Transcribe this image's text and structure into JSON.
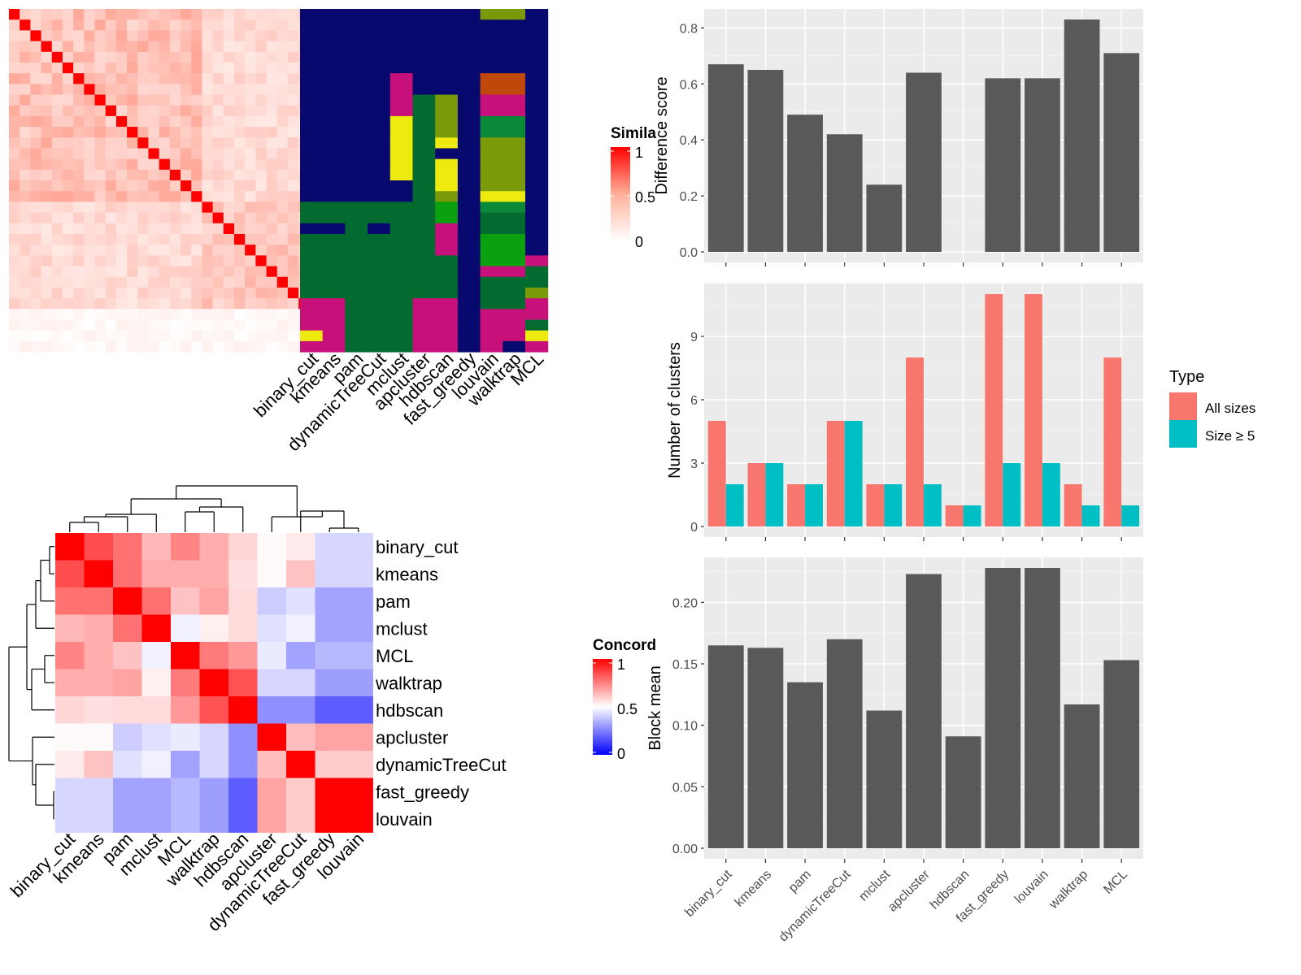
{
  "colors": {
    "panel_bg": "#ebebeb",
    "grid_major": "#ffffff",
    "bar_fill": "#595959",
    "all_sizes": "#F8766D",
    "size_ge5": "#00BFC4",
    "assign_navy": "#08096e",
    "assign_green": "#036b30",
    "assign_magenta": "#c8107a",
    "assign_yellow": "#eeea10",
    "assign_olive": "#7a9a0a",
    "assign_orange": "#c0480a",
    "assign_bright_green": "#0aa010",
    "assign_mid_green": "#0a8a38",
    "high": "#ff0000",
    "mid": "#ffffff",
    "low": "#0000ff"
  },
  "similarity_panel": {
    "legend_title": "Simila",
    "legend_ticks": [
      "1",
      "0.5",
      "0"
    ],
    "x_labels": [
      "binary_cut",
      "kmeans",
      "pam",
      "dynamicTreeCut",
      "mclust",
      "apcluster",
      "hdbscan",
      "fast_greedy",
      "louvain",
      "walktrap",
      "MCL"
    ],
    "n_terms": 32
  },
  "concordance_panel": {
    "legend_title": "Concord",
    "legend_ticks": [
      "1",
      "0.5",
      "0"
    ],
    "row_labels": [
      "binary_cut",
      "kmeans",
      "pam",
      "mclust",
      "MCL",
      "walktrap",
      "hdbscan",
      "apcluster",
      "dynamicTreeCut",
      "fast_greedy",
      "louvain"
    ],
    "col_labels": [
      "binary_cut",
      "kmeans",
      "pam",
      "mclust",
      "MCL",
      "walktrap",
      "hdbscan",
      "apcluster",
      "dynamicTreeCut",
      "fast_greedy",
      "louvain"
    ],
    "matrix": [
      [
        1.0,
        0.85,
        0.78,
        0.64,
        0.74,
        0.66,
        0.58,
        0.51,
        0.54,
        0.42,
        0.42
      ],
      [
        0.85,
        1.0,
        0.78,
        0.66,
        0.66,
        0.66,
        0.56,
        0.51,
        0.62,
        0.42,
        0.42
      ],
      [
        0.78,
        0.78,
        1.0,
        0.78,
        0.62,
        0.68,
        0.57,
        0.4,
        0.44,
        0.32,
        0.32
      ],
      [
        0.64,
        0.66,
        0.78,
        1.0,
        0.47,
        0.53,
        0.57,
        0.44,
        0.47,
        0.32,
        0.32
      ],
      [
        0.74,
        0.66,
        0.62,
        0.47,
        1.0,
        0.76,
        0.7,
        0.46,
        0.32,
        0.36,
        0.36
      ],
      [
        0.66,
        0.66,
        0.68,
        0.53,
        0.76,
        1.0,
        0.84,
        0.42,
        0.42,
        0.31,
        0.31
      ],
      [
        0.58,
        0.56,
        0.57,
        0.57,
        0.7,
        0.84,
        1.0,
        0.28,
        0.28,
        0.18,
        0.18
      ],
      [
        0.51,
        0.51,
        0.4,
        0.44,
        0.46,
        0.42,
        0.28,
        1.0,
        0.63,
        0.68,
        0.68
      ],
      [
        0.54,
        0.62,
        0.44,
        0.47,
        0.32,
        0.42,
        0.28,
        0.63,
        1.0,
        0.6,
        0.6
      ],
      [
        0.42,
        0.42,
        0.32,
        0.32,
        0.36,
        0.31,
        0.18,
        0.68,
        0.6,
        1.0,
        1.0
      ],
      [
        0.42,
        0.42,
        0.32,
        0.32,
        0.36,
        0.31,
        0.18,
        0.68,
        0.6,
        1.0,
        1.0
      ]
    ]
  },
  "chart_data": [
    {
      "type": "bar",
      "ylabel": "Difference score",
      "categories": [
        "binary_cut",
        "kmeans",
        "pam",
        "dynamicTreeCut",
        "mclust",
        "apcluster",
        "hdbscan",
        "fast_greedy",
        "louvain",
        "walktrap",
        "MCL"
      ],
      "values": [
        0.67,
        0.65,
        0.49,
        0.42,
        0.24,
        0.64,
        0.0,
        0.62,
        0.62,
        0.83,
        0.71
      ],
      "ylim": [
        0,
        0.84
      ],
      "yticks": [
        "0.0",
        "0.2",
        "0.4",
        "0.6",
        "0.8"
      ],
      "ytick_values": [
        0,
        0.2,
        0.4,
        0.6,
        0.8
      ],
      "ymax": 0.83
    },
    {
      "type": "bar",
      "ylabel": "Number of clusters",
      "categories": [
        "binary_cut",
        "kmeans",
        "pam",
        "dynamicTreeCut",
        "mclust",
        "apcluster",
        "hdbscan",
        "fast_greedy",
        "louvain",
        "walktrap",
        "MCL"
      ],
      "series": [
        {
          "name": "All sizes",
          "values": [
            5,
            3,
            2,
            5,
            2,
            8,
            1,
            11,
            11,
            2,
            8
          ]
        },
        {
          "name": "Size ≥ 5",
          "values": [
            2,
            3,
            2,
            5,
            2,
            2,
            1,
            3,
            3,
            1,
            1
          ]
        }
      ],
      "legend_title": "Type",
      "legend_position": "right",
      "yticks": [
        "0",
        "3",
        "6",
        "9"
      ],
      "ytick_values": [
        0,
        3,
        6,
        9
      ],
      "ymax": 11
    },
    {
      "type": "bar",
      "ylabel": "Block mean",
      "categories": [
        "binary_cut",
        "kmeans",
        "pam",
        "dynamicTreeCut",
        "mclust",
        "apcluster",
        "hdbscan",
        "fast_greedy",
        "louvain",
        "walktrap",
        "MCL"
      ],
      "values": [
        0.165,
        0.163,
        0.135,
        0.17,
        0.112,
        0.223,
        0.091,
        0.228,
        0.228,
        0.117,
        0.153
      ],
      "yticks": [
        "0.00",
        "0.05",
        "0.10",
        "0.15",
        "0.20"
      ],
      "ytick_values": [
        0,
        0.05,
        0.1,
        0.15,
        0.2
      ],
      "ymax": 0.228
    }
  ]
}
